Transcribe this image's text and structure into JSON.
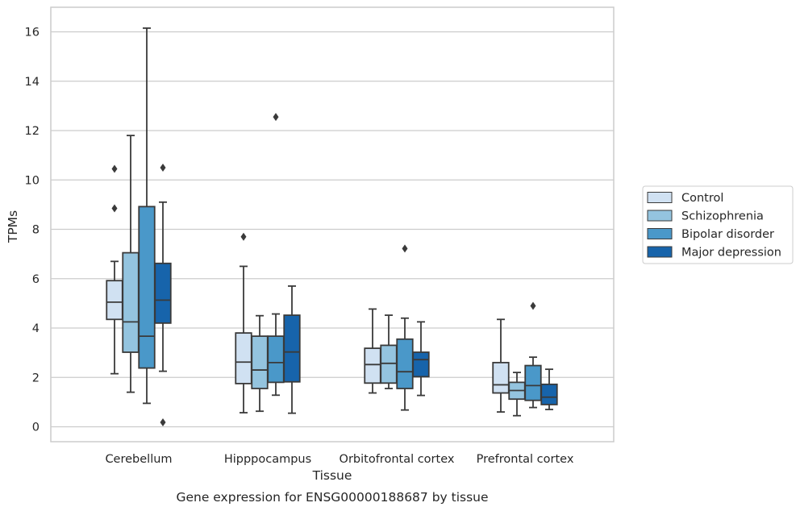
{
  "chart_data": {
    "type": "box",
    "xlabel": "Tissue",
    "ylabel": "TPMs",
    "caption": "Gene expression for ENSG00000188687 by tissue",
    "ylim": [
      -0.6,
      17.0
    ],
    "yticks": [
      0,
      2,
      4,
      6,
      8,
      10,
      12,
      14,
      16
    ],
    "grid": true,
    "legend_position": "right",
    "categories": [
      "Cerebellum",
      "Hipppocampus",
      "Orbitofrontal cortex",
      "Prefrontal cortex"
    ],
    "series": [
      {
        "name": "Control",
        "color": "#d0e1f2",
        "boxes": [
          {
            "whisker_low": 2.15,
            "q1": 4.35,
            "median": 5.05,
            "q3": 5.92,
            "whisker_high": 6.7,
            "outliers": [
              10.45,
              8.85
            ]
          },
          {
            "whisker_low": 0.57,
            "q1": 1.75,
            "median": 2.62,
            "q3": 3.8,
            "whisker_high": 6.5,
            "outliers": [
              7.7
            ]
          },
          {
            "whisker_low": 1.37,
            "q1": 1.77,
            "median": 2.52,
            "q3": 3.18,
            "whisker_high": 4.77,
            "outliers": []
          },
          {
            "whisker_low": 0.6,
            "q1": 1.37,
            "median": 1.7,
            "q3": 2.6,
            "whisker_high": 4.35,
            "outliers": []
          }
        ]
      },
      {
        "name": "Schizophrenia",
        "color": "#94c4df",
        "boxes": [
          {
            "whisker_low": 1.4,
            "q1": 3.02,
            "median": 4.25,
            "q3": 7.05,
            "whisker_high": 11.8,
            "outliers": []
          },
          {
            "whisker_low": 0.63,
            "q1": 1.55,
            "median": 2.3,
            "q3": 3.67,
            "whisker_high": 4.5,
            "outliers": []
          },
          {
            "whisker_low": 1.55,
            "q1": 1.77,
            "median": 2.57,
            "q3": 3.3,
            "whisker_high": 4.52,
            "outliers": []
          },
          {
            "whisker_low": 0.45,
            "q1": 1.12,
            "median": 1.47,
            "q3": 1.8,
            "whisker_high": 2.2,
            "outliers": []
          }
        ]
      },
      {
        "name": "Bipolar disorder",
        "color": "#4a98c9",
        "boxes": [
          {
            "whisker_low": 0.95,
            "q1": 2.38,
            "median": 3.67,
            "q3": 8.92,
            "whisker_high": 16.15,
            "outliers": []
          },
          {
            "whisker_low": 1.28,
            "q1": 1.8,
            "median": 2.6,
            "q3": 3.67,
            "whisker_high": 4.57,
            "outliers": [
              12.55
            ]
          },
          {
            "whisker_low": 0.68,
            "q1": 1.55,
            "median": 2.23,
            "q3": 3.55,
            "whisker_high": 4.4,
            "outliers": [
              7.22
            ]
          },
          {
            "whisker_low": 0.78,
            "q1": 1.07,
            "median": 1.67,
            "q3": 2.48,
            "whisker_high": 2.82,
            "outliers": [
              4.9
            ]
          }
        ]
      },
      {
        "name": "Major depression",
        "color": "#1764ab",
        "boxes": [
          {
            "whisker_low": 2.25,
            "q1": 4.2,
            "median": 5.13,
            "q3": 6.62,
            "whisker_high": 9.1,
            "outliers": [
              10.5,
              0.18
            ]
          },
          {
            "whisker_low": 0.55,
            "q1": 1.82,
            "median": 3.03,
            "q3": 4.52,
            "whisker_high": 5.7,
            "outliers": []
          },
          {
            "whisker_low": 1.27,
            "q1": 2.03,
            "median": 2.72,
            "q3": 3.02,
            "whisker_high": 4.25,
            "outliers": []
          },
          {
            "whisker_low": 0.7,
            "q1": 0.9,
            "median": 1.2,
            "q3": 1.72,
            "whisker_high": 2.33,
            "outliers": []
          }
        ]
      }
    ]
  }
}
